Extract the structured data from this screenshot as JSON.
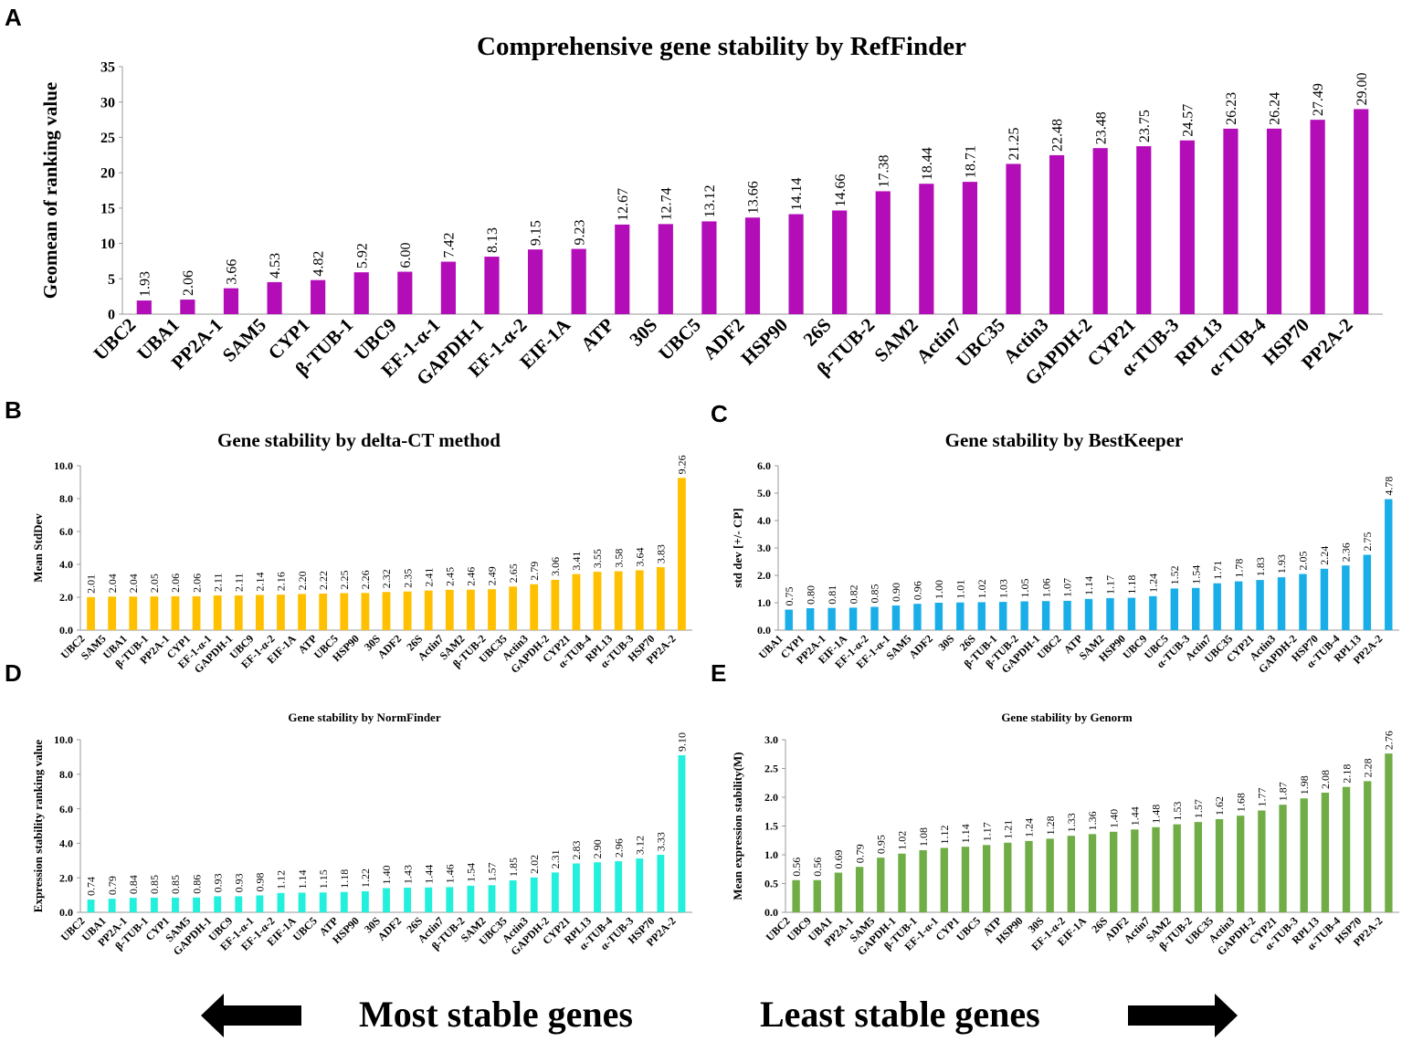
{
  "chart_data": [
    {
      "panel": "A",
      "type": "bar",
      "title": "Comprehensive gene stability by RefFinder",
      "xlabel": "",
      "ylabel": "Geomean of ranking value",
      "ylim": [
        0,
        35
      ],
      "yticks": [
        "0",
        "5",
        "10",
        "15",
        "20",
        "25",
        "30",
        "35"
      ],
      "color": "#B30DB8",
      "categories": [
        "UBC2",
        "UBA1",
        "PP2A-1",
        "SAM5",
        "CYP1",
        "β-TUB-1",
        "UBC9",
        "EF-1-α-1",
        "GAPDH-1",
        "EF-1-α-2",
        "EIF-1A",
        "ATP",
        "30S",
        "UBC5",
        "ADF2",
        "HSP90",
        "26S",
        "β-TUB-2",
        "SAM2",
        "Actin7",
        "UBC35",
        "Actin3",
        "GAPDH-2",
        "CYP21",
        "α-TUB-3",
        "RPL13",
        "α-TUB-4",
        "HSP70",
        "PP2A-2"
      ],
      "values": [
        1.93,
        2.06,
        3.66,
        4.53,
        4.82,
        5.92,
        6.0,
        7.42,
        8.13,
        9.15,
        9.23,
        12.67,
        12.74,
        13.12,
        13.66,
        14.14,
        14.66,
        17.38,
        18.44,
        18.71,
        21.25,
        22.48,
        23.48,
        23.75,
        24.57,
        26.23,
        26.24,
        27.49,
        29.0
      ],
      "labels": [
        "1.93",
        "2.06",
        "3.66",
        "4.53",
        "4.82",
        "5.92",
        "6.00",
        "7.42",
        "8.13",
        "9.15",
        "9.23",
        "12.67",
        "12.74",
        "13.12",
        "13.66",
        "14.14",
        "14.66",
        "17.38",
        "18.44",
        "18.71",
        "21.25",
        "22.48",
        "23.48",
        "23.75",
        "24.57",
        "26.23",
        "26.24",
        "27.49",
        "29.00"
      ]
    },
    {
      "panel": "B",
      "type": "bar",
      "title": "Gene stability by delta-CT method",
      "xlabel": "",
      "ylabel": "Mean StdDev",
      "ylim": [
        0,
        10
      ],
      "yticks": [
        "0.0",
        "2.0",
        "4.0",
        "6.0",
        "8.0",
        "10.0"
      ],
      "color": "#FFC000",
      "categories": [
        "UBC2",
        "SAM5",
        "UBA1",
        "β-TUB-1",
        "PP2A-1",
        "CYP1",
        "EF-1-α-1",
        "GAPDH-1",
        "UBC9",
        "EF-1-α-2",
        "EIF-1A",
        "ATP",
        "UBC5",
        "HSP90",
        "30S",
        "ADF2",
        "26S",
        "Actin7",
        "SAM2",
        "β-TUB-2",
        "UBC35",
        "Actin3",
        "GAPDH-2",
        "CYP21",
        "α-TUB-4",
        "RPL13",
        "α-TUB-3",
        "HSP70",
        "PP2A-2"
      ],
      "values": [
        2.01,
        2.04,
        2.04,
        2.05,
        2.06,
        2.06,
        2.11,
        2.11,
        2.14,
        2.16,
        2.2,
        2.22,
        2.25,
        2.26,
        2.32,
        2.35,
        2.41,
        2.45,
        2.46,
        2.49,
        2.65,
        2.79,
        3.06,
        3.41,
        3.55,
        3.58,
        3.64,
        3.83,
        9.26
      ],
      "labels": [
        "2.01",
        "2.04",
        "2.04",
        "2.05",
        "2.06",
        "2.06",
        "2.11",
        "2.11",
        "2.14",
        "2.16",
        "2.20",
        "2.22",
        "2.25",
        "2.26",
        "2.32",
        "2.35",
        "2.41",
        "2.45",
        "2.46",
        "2.49",
        "2.65",
        "2.79",
        "3.06",
        "3.41",
        "3.55",
        "3.58",
        "3.64",
        "3.83",
        "9.26"
      ]
    },
    {
      "panel": "C",
      "type": "bar",
      "title": "Gene stability by BestKeeper",
      "xlabel": "",
      "ylabel": "std dev [+/- CP]",
      "ylim": [
        0,
        6
      ],
      "yticks": [
        "0.0",
        "1.0",
        "2.0",
        "3.0",
        "4.0",
        "5.0",
        "6.0"
      ],
      "color": "#1AAEE8",
      "categories": [
        "UBA1",
        "CYP1",
        "PP2A-1",
        "EIF-1A",
        "EF-1-α-2",
        "EF-1-α-1",
        "SAM5",
        "ADF2",
        "30S",
        "26S",
        "β-TUB-1",
        "β-TUB-2",
        "GAPDH-1",
        "UBC2",
        "ATP",
        "SAM2",
        "HSP90",
        "UBC9",
        "UBC5",
        "α-TUB-3",
        "Actin7",
        "UBC35",
        "CYP21",
        "Actin3",
        "GAPDH-2",
        "HSP70",
        "α-TUB-4",
        "RPL13",
        "PP2A-2"
      ],
      "values": [
        0.75,
        0.8,
        0.81,
        0.82,
        0.85,
        0.9,
        0.96,
        1.0,
        1.01,
        1.02,
        1.03,
        1.05,
        1.06,
        1.07,
        1.14,
        1.17,
        1.18,
        1.24,
        1.52,
        1.54,
        1.71,
        1.78,
        1.83,
        1.93,
        2.05,
        2.24,
        2.36,
        2.75,
        4.78
      ],
      "labels": [
        "0.75",
        "0.80",
        "0.81",
        "0.82",
        "0.85",
        "0.90",
        "0.96",
        "1.00",
        "1.01",
        "1.02",
        "1.03",
        "1.05",
        "1.06",
        "1.07",
        "1.14",
        "1.17",
        "1.18",
        "1.24",
        "1.52",
        "1.54",
        "1.71",
        "1.78",
        "1.83",
        "1.93",
        "2.05",
        "2.24",
        "2.36",
        "2.75",
        "4.78"
      ]
    },
    {
      "panel": "D",
      "type": "bar",
      "title": "Gene stability by NormFinder",
      "xlabel": "",
      "ylabel": "Expression stability ranking value",
      "ylim": [
        0,
        10
      ],
      "yticks": [
        "0.0",
        "2.0",
        "4.0",
        "6.0",
        "8.0",
        "10.0"
      ],
      "color": "#22F0DC",
      "categories": [
        "UBC2",
        "UBA1",
        "PP2A-1",
        "β-TUB-1",
        "CYP1",
        "SAM5",
        "GAPDH-1",
        "UBC9",
        "EF-1-α-1",
        "EF-1-α-2",
        "EIF-1A",
        "UBC5",
        "ATP",
        "HSP90",
        "30S",
        "ADF2",
        "26S",
        "Actin7",
        "β-TUB-2",
        "SAM2",
        "UBC35",
        "Actin3",
        "GAPDH-2",
        "CYP21",
        "RPL13",
        "α-TUB-4",
        "α-TUB-3",
        "HSP70",
        "PP2A-2"
      ],
      "values": [
        0.74,
        0.79,
        0.84,
        0.85,
        0.85,
        0.86,
        0.93,
        0.93,
        0.98,
        1.12,
        1.14,
        1.15,
        1.18,
        1.22,
        1.4,
        1.43,
        1.44,
        1.46,
        1.54,
        1.57,
        1.85,
        2.02,
        2.31,
        2.83,
        2.9,
        2.96,
        3.12,
        3.33,
        9.1
      ],
      "labels": [
        "0.74",
        "0.79",
        "0.84",
        "0.85",
        "0.85",
        "0.86",
        "0.93",
        "0.93",
        "0.98",
        "1.12",
        "1.14",
        "1.15",
        "1.18",
        "1.22",
        "1.40",
        "1.43",
        "1.44",
        "1.46",
        "1.54",
        "1.57",
        "1.85",
        "2.02",
        "2.31",
        "2.83",
        "2.90",
        "2.96",
        "3.12",
        "3.33",
        "9.10"
      ]
    },
    {
      "panel": "E",
      "type": "bar",
      "title": "Gene stability by Genorm",
      "xlabel": "",
      "ylabel": "Mean expression stability(M)",
      "ylim": [
        0,
        3
      ],
      "yticks": [
        "0.0",
        "0.5",
        "1.0",
        "1.5",
        "2.0",
        "2.5",
        "3.0"
      ],
      "color": "#70AD47",
      "categories": [
        "UBC2",
        "UBC9",
        "UBA1",
        "PP2A-1",
        "SAM5",
        "GAPDH-1",
        "β-TUB-1",
        "EF-1-α-1",
        "CYP1",
        "UBC5",
        "ATP",
        "HSP90",
        "30S",
        "EF-1-α-2",
        "EIF-1A",
        "26S",
        "ADF2",
        "Actin7",
        "SAM2",
        "β-TUB-2",
        "UBC35",
        "Actin3",
        "GAPDH-2",
        "CYP21",
        "α-TUB-3",
        "RPL13",
        "α-TUB-4",
        "HSP70",
        "PP2A-2"
      ],
      "values": [
        0.56,
        0.56,
        0.69,
        0.79,
        0.95,
        1.02,
        1.08,
        1.12,
        1.14,
        1.17,
        1.21,
        1.24,
        1.28,
        1.33,
        1.36,
        1.4,
        1.44,
        1.48,
        1.53,
        1.57,
        1.62,
        1.68,
        1.77,
        1.87,
        1.98,
        2.08,
        2.18,
        2.28,
        2.76
      ],
      "labels": [
        "0.56",
        "0.56",
        "0.69",
        "0.79",
        "0.95",
        "1.02",
        "1.08",
        "1.12",
        "1.14",
        "1.17",
        "1.21",
        "1.24",
        "1.28",
        "1.33",
        "1.36",
        "1.40",
        "1.44",
        "1.48",
        "1.53",
        "1.57",
        "1.62",
        "1.68",
        "1.77",
        "1.87",
        "1.98",
        "2.08",
        "2.18",
        "2.28",
        "2.76"
      ]
    }
  ],
  "footer": {
    "left_text": "Most stable genes",
    "right_text": "Least stable genes",
    "left_arrow_icon": "arrow-left-icon",
    "right_arrow_icon": "arrow-right-icon"
  }
}
